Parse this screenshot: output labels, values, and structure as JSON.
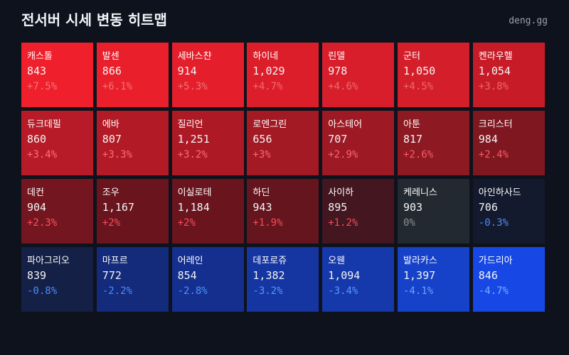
{
  "header": {
    "title": "전서버 시세 변동 히트맵",
    "brand": "deng.gg"
  },
  "tiles": [
    {
      "name": "캐스톨",
      "price": "843",
      "change": "+7.5%",
      "color": "#ef1f2c",
      "accent": "#f7747c"
    },
    {
      "name": "발센",
      "price": "866",
      "change": "+6.1%",
      "color": "#e91f2b",
      "accent": "#f3737b"
    },
    {
      "name": "세바스챤",
      "price": "914",
      "change": "+5.3%",
      "color": "#e41f2b",
      "accent": "#f1727a"
    },
    {
      "name": "하이네",
      "price": "1,029",
      "change": "+4.7%",
      "color": "#dc1e2a",
      "accent": "#f06a73"
    },
    {
      "name": "린델",
      "price": "978",
      "change": "+4.6%",
      "color": "#d81e2a",
      "accent": "#ee6a73"
    },
    {
      "name": "군터",
      "price": "1,050",
      "change": "+4.5%",
      "color": "#d41e29",
      "accent": "#ed6971"
    },
    {
      "name": "켄라우헬",
      "price": "1,054",
      "change": "+3.8%",
      "color": "#c71c28",
      "accent": "#ee6670"
    },
    {
      "name": "듀크데필",
      "price": "860",
      "change": "+3.4%",
      "color": "#b71b27",
      "accent": "#ff6e78"
    },
    {
      "name": "에바",
      "price": "807",
      "change": "+3.3%",
      "color": "#b21a26",
      "accent": "#ff6b76"
    },
    {
      "name": "질리언",
      "price": "1,251",
      "change": "+3.2%",
      "color": "#ad1a26",
      "accent": "#ff6a74"
    },
    {
      "name": "로엔그린",
      "price": "656",
      "change": "+3%",
      "color": "#a31a25",
      "accent": "#ff6570"
    },
    {
      "name": "아스테어",
      "price": "707",
      "change": "+2.9%",
      "color": "#9d1a25",
      "accent": "#ff626d"
    },
    {
      "name": "아툰",
      "price": "817",
      "change": "+2.6%",
      "color": "#8d1922",
      "accent": "#ff5a66"
    },
    {
      "name": "크리스터",
      "price": "984",
      "change": "+2.4%",
      "color": "#7e1720",
      "accent": "#ff5763"
    },
    {
      "name": "데컨",
      "price": "904",
      "change": "+2.3%",
      "color": "#74161f",
      "accent": "#ff4f5c"
    },
    {
      "name": "조우",
      "price": "1,167",
      "change": "+2%",
      "color": "#6a151e",
      "accent": "#ff4b58"
    },
    {
      "name": "이실로테",
      "price": "1,184",
      "change": "+2%",
      "color": "#6a151e",
      "accent": "#ff4b58"
    },
    {
      "name": "하딘",
      "price": "943",
      "change": "+1.9%",
      "color": "#64151e",
      "accent": "#ff4856"
    },
    {
      "name": "사이하",
      "price": "895",
      "change": "+1.2%",
      "color": "#431620",
      "accent": "#ff4856"
    },
    {
      "name": "케레니스",
      "price": "903",
      "change": "0%",
      "color": "#232930",
      "accent": "#8a9099"
    },
    {
      "name": "아인하사드",
      "price": "706",
      "change": "-0.3%",
      "color": "#131a2d",
      "accent": "#4a8bff"
    },
    {
      "name": "파아그리오",
      "price": "839",
      "change": "-0.8%",
      "color": "#142046",
      "accent": "#4a8bff"
    },
    {
      "name": "마프르",
      "price": "772",
      "change": "-2.2%",
      "color": "#142a7a",
      "accent": "#4b8dff"
    },
    {
      "name": "어레인",
      "price": "854",
      "change": "-2.8%",
      "color": "#142f8e",
      "accent": "#4f90ff"
    },
    {
      "name": "데포로쥬",
      "price": "1,382",
      "change": "-3.2%",
      "color": "#1535a1",
      "accent": "#5896ff"
    },
    {
      "name": "오웬",
      "price": "1,094",
      "change": "-3.4%",
      "color": "#1538aa",
      "accent": "#5a98ff"
    },
    {
      "name": "발라카스",
      "price": "1,397",
      "change": "-4.1%",
      "color": "#1641c9",
      "accent": "#6aa2ff"
    },
    {
      "name": "가드리아",
      "price": "846",
      "change": "-4.7%",
      "color": "#1748e6",
      "accent": "#7aacff"
    }
  ]
}
